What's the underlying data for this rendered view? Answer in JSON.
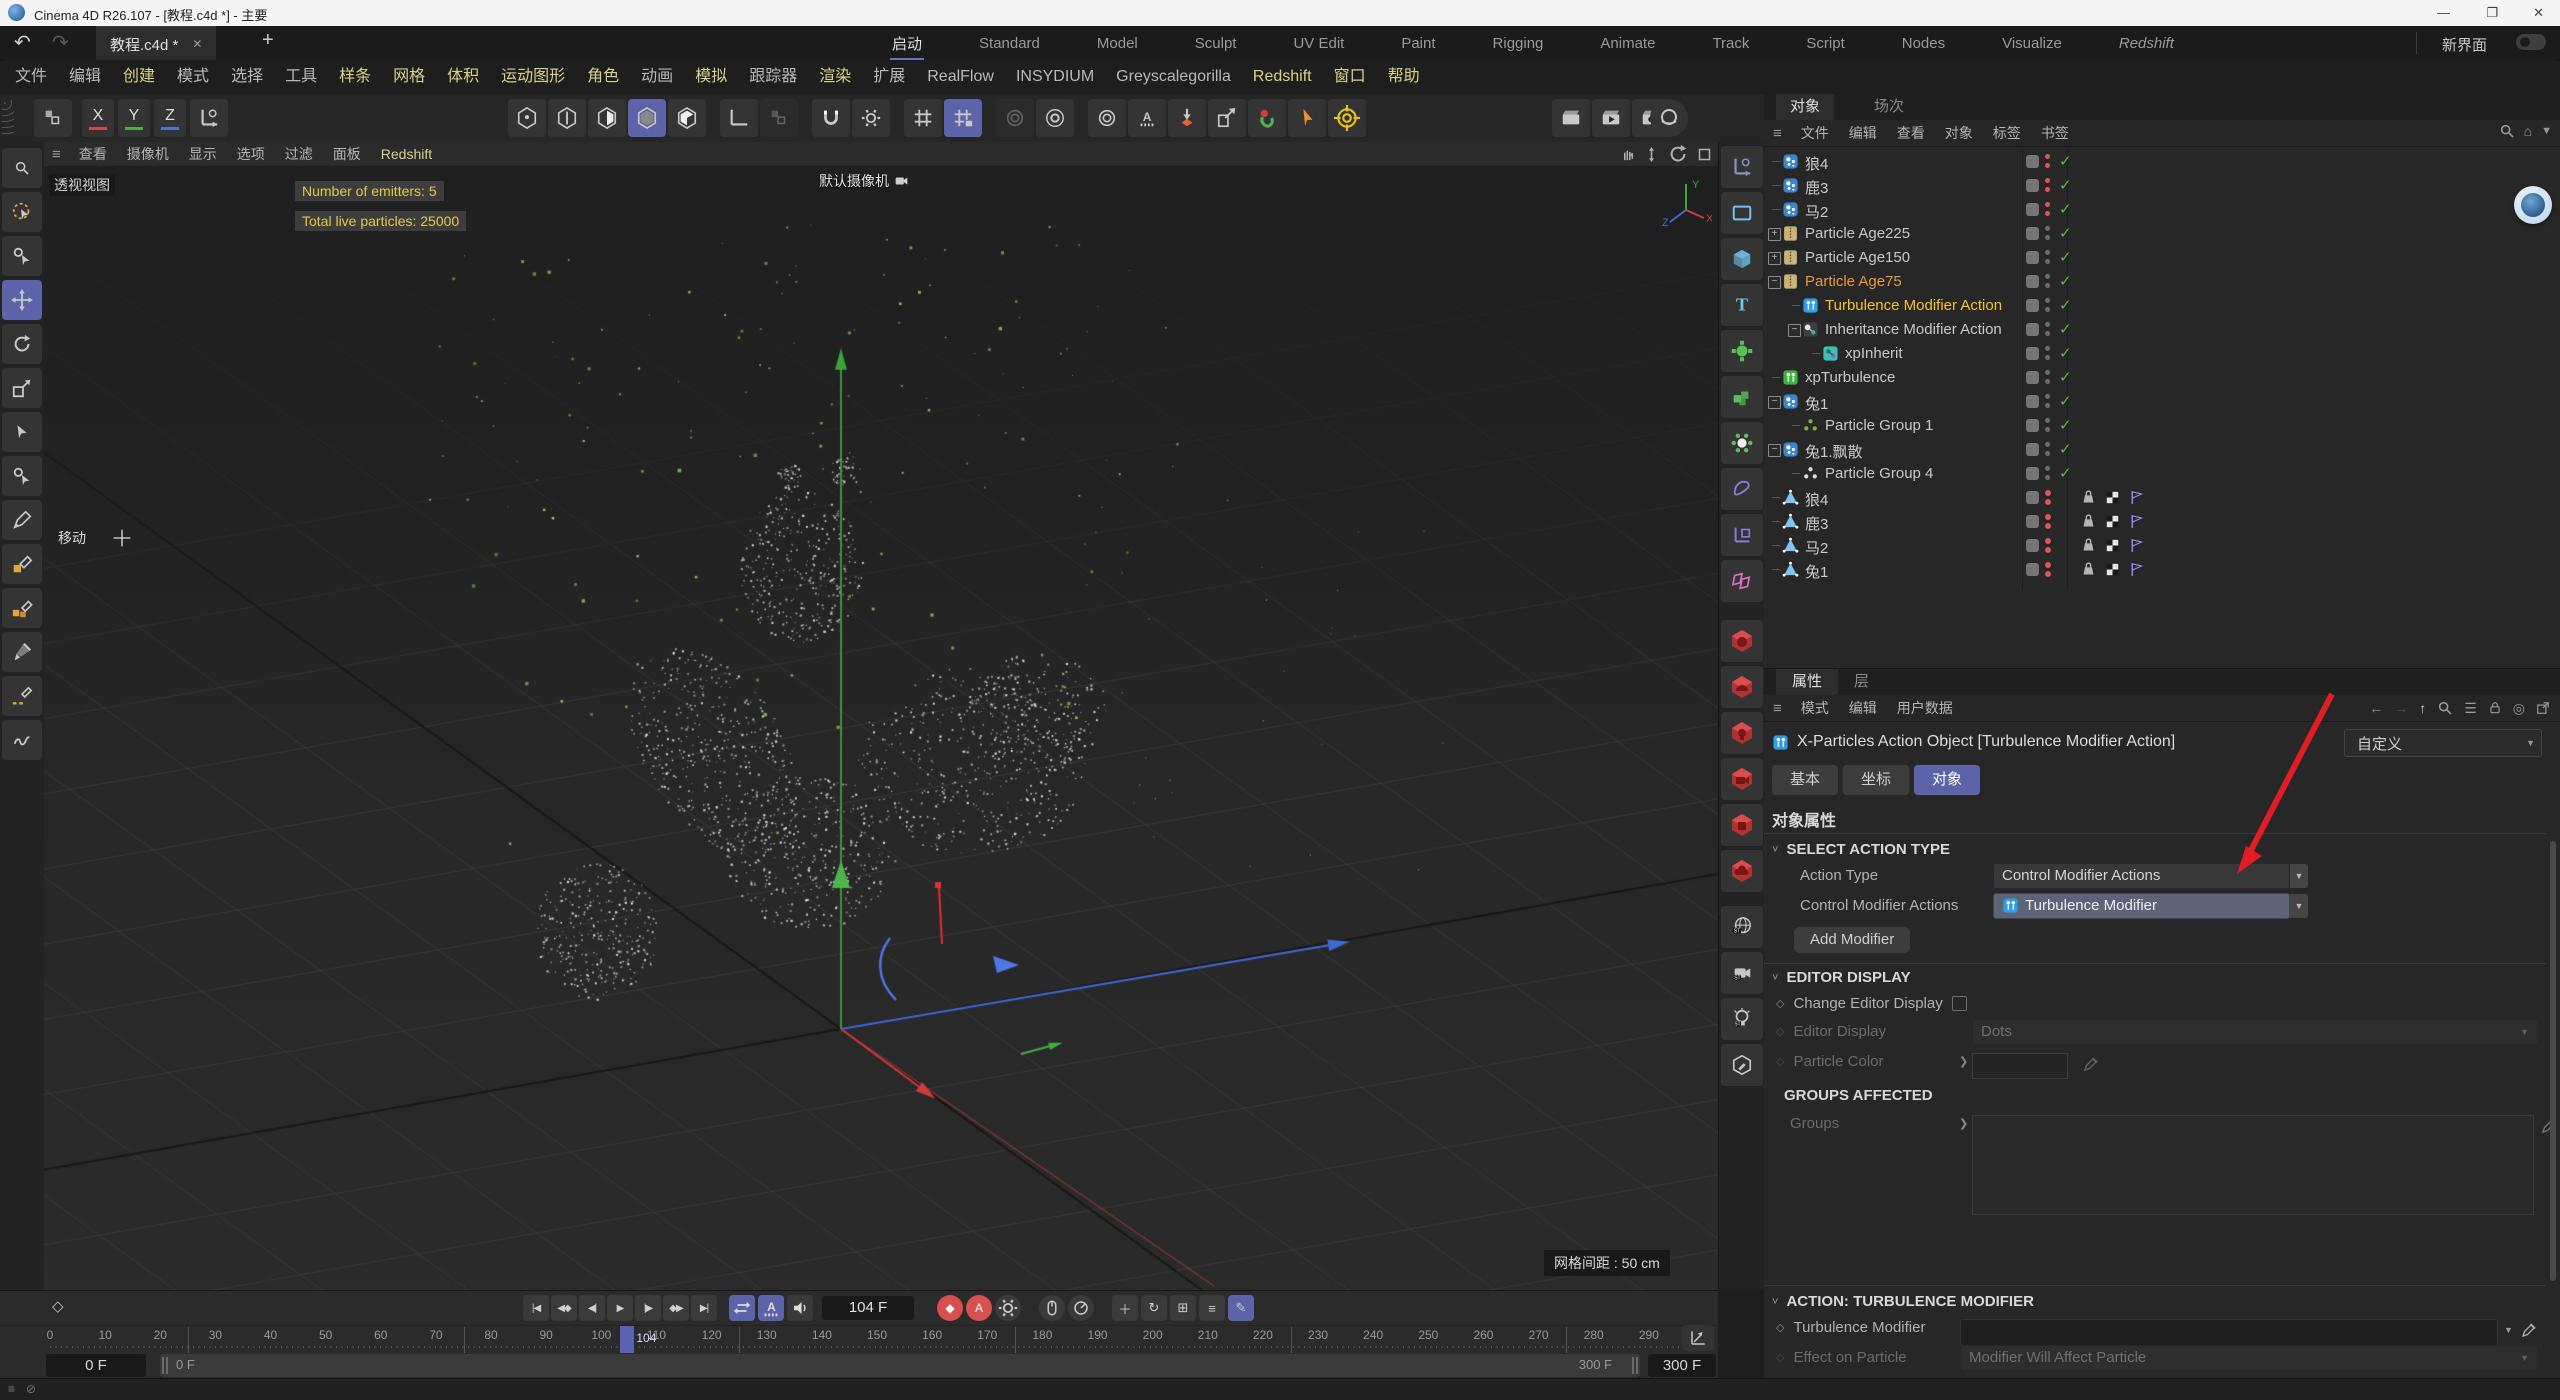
{
  "titlebar": {
    "title": "Cinema 4D R26.107 - [教程.c4d *] - 主要"
  },
  "tabbar": {
    "doc_tab": "教程.c4d *",
    "close": "✕",
    "add_tab": "+",
    "layout_tabs": [
      "启动",
      "Standard",
      "Model",
      "Sculpt",
      "UV Edit",
      "Paint",
      "Rigging",
      "Animate",
      "Track",
      "Script",
      "Nodes",
      "Visualize",
      "Redshift"
    ],
    "active_layout": "启动",
    "new_panel_label": "新界面"
  },
  "menubar": {
    "items": [
      {
        "label": "文件",
        "accent": false
      },
      {
        "label": "编辑",
        "accent": false
      },
      {
        "label": "创建",
        "accent": true
      },
      {
        "label": "模式",
        "accent": false
      },
      {
        "label": "选择",
        "accent": false
      },
      {
        "label": "工具",
        "accent": false
      },
      {
        "label": "样条",
        "accent": true
      },
      {
        "label": "网格",
        "accent": true
      },
      {
        "label": "体积",
        "accent": true
      },
      {
        "label": "运动图形",
        "accent": true
      },
      {
        "label": "角色",
        "accent": true
      },
      {
        "label": "动画",
        "accent": false
      },
      {
        "label": "模拟",
        "accent": true
      },
      {
        "label": "跟踪器",
        "accent": false
      },
      {
        "label": "渲染",
        "accent": true
      },
      {
        "label": "扩展",
        "accent": false
      },
      {
        "label": "RealFlow",
        "accent": false
      },
      {
        "label": "INSYDIUM",
        "accent": false
      },
      {
        "label": "Greyscalegorilla",
        "accent": false
      },
      {
        "label": "Redshift",
        "accent": true
      },
      {
        "label": "窗口",
        "accent": true
      },
      {
        "label": "帮助",
        "accent": true
      }
    ]
  },
  "toolbar": {
    "axis_buttons": [
      "X",
      "Y",
      "Z"
    ]
  },
  "viewport": {
    "menu": [
      "查看",
      "摄像机",
      "显示",
      "选项",
      "过滤",
      "面板",
      "Redshift"
    ],
    "view_label": "透视视图",
    "camera_label": "默认摄像机",
    "hud_lines": [
      "Number of emitters: 5",
      "Total live particles: 25000"
    ],
    "tool_hint": "移动",
    "grid_spacing_label": "网格间距 : 50 cm",
    "axis_labels": {
      "x": "X",
      "y": "Y",
      "z": "Z"
    }
  },
  "object_manager": {
    "tabs": [
      "对象",
      "场次"
    ],
    "active_tab": "对象",
    "menu": [
      "文件",
      "编辑",
      "查看",
      "对象",
      "标签",
      "书签"
    ],
    "rows": [
      {
        "t": "狼4",
        "i": "em",
        "d": 0,
        "e": "line",
        "dot": "r",
        "tail": "check"
      },
      {
        "t": "鹿3",
        "i": "em",
        "d": 0,
        "e": "line",
        "dot": "r",
        "tail": "check"
      },
      {
        "t": "马2",
        "i": "em",
        "d": 0,
        "e": "line",
        "dot": "r",
        "tail": "check"
      },
      {
        "t": "Particle Age225",
        "i": "pa",
        "d": 0,
        "e": "plus",
        "dot": "g",
        "tail": "check"
      },
      {
        "t": "Particle Age150",
        "i": "pa",
        "d": 0,
        "e": "plus",
        "dot": "g",
        "tail": "check"
      },
      {
        "t": "Particle Age75",
        "c": "orange",
        "i": "pa",
        "d": 0,
        "e": "minus",
        "dot": "g",
        "tail": "check"
      },
      {
        "t": "Turbulence Modifier Action",
        "c": "yellow",
        "i": "ta",
        "d": 1,
        "e": "line",
        "dot": "g",
        "tail": "check"
      },
      {
        "t": "Inheritance Modifier Action",
        "i": "ia",
        "d": 1,
        "e": "minus",
        "dot": "g",
        "tail": "check"
      },
      {
        "t": "xpInherit",
        "i": "xi",
        "d": 2,
        "e": "end",
        "dot": "g",
        "tail": "check"
      },
      {
        "t": "xpTurbulence",
        "i": "xt",
        "d": 0,
        "e": "line",
        "dot": "g",
        "tail": "check"
      },
      {
        "t": "兔1",
        "i": "em",
        "d": 0,
        "e": "minus",
        "dot": "g",
        "tail": "check"
      },
      {
        "t": "Particle Group 1",
        "i": "pg1",
        "d": 1,
        "e": "end",
        "dot": "g",
        "tail": "check"
      },
      {
        "t": "兔1.飘散",
        "i": "em",
        "d": 0,
        "e": "minus",
        "dot": "g",
        "tail": "check"
      },
      {
        "t": "Particle Group 4",
        "i": "pg4",
        "d": 1,
        "e": "end",
        "dot": "g",
        "tail": "check"
      },
      {
        "t": "狼4",
        "i": "po",
        "d": 0,
        "e": "line",
        "dot": "rr",
        "tail": "tags"
      },
      {
        "t": "鹿3",
        "i": "po",
        "d": 0,
        "e": "line",
        "dot": "rr",
        "tail": "tags"
      },
      {
        "t": "马2",
        "i": "po",
        "d": 0,
        "e": "line",
        "dot": "rr",
        "tail": "tags"
      },
      {
        "t": "兔1",
        "i": "po",
        "d": 0,
        "e": "line",
        "dot": "rr",
        "tail": "tags"
      }
    ]
  },
  "attributes": {
    "tabs": [
      "属性",
      "层"
    ],
    "active_tab": "属性",
    "menu": [
      "模式",
      "编辑",
      "用户数据"
    ],
    "object_title": "X-Particles Action Object [Turbulence Modifier Action]",
    "preset": "自定义",
    "tab_buttons": [
      "基本",
      "坐标",
      "对象"
    ],
    "active_button": "对象",
    "section": "对象属性",
    "sat": {
      "header": "SELECT ACTION TYPE",
      "action_type_label": "Action Type",
      "action_type_value": "Control Modifier Actions",
      "cma_label": "Control Modifier Actions",
      "cma_value": "Turbulence Modifier",
      "add_button": "Add Modifier"
    },
    "ed": {
      "header": "EDITOR DISPLAY",
      "change_label": "Change Editor Display",
      "display_label": "Editor Display",
      "display_value": "Dots",
      "color_label": "Particle Color"
    },
    "ga": {
      "header": "GROUPS AFFECTED",
      "groups_label": "Groups"
    },
    "act": {
      "header": "ACTION: TURBULENCE MODIFIER",
      "modifier_label": "Turbulence Modifier",
      "effect_label": "Effect on Particle",
      "effect_value": "Modifier Will Affect Particle"
    }
  },
  "timeline": {
    "current_frame": "104 F",
    "ruler": {
      "min": 0,
      "max": 300,
      "step": 10,
      "current": 104,
      "current_label": "104",
      "marker_frames": [
        25,
        75,
        125,
        175,
        225,
        275
      ]
    },
    "range_start": "0 F",
    "range_end": "300 F",
    "start_field": "0 F",
    "end_field": "300 F"
  },
  "colors": {
    "accent": "#5b64a8",
    "menu_accent": "#d6d28a",
    "selected_orange": "#e8993f",
    "selected_yellow": "#f5c12e",
    "check_green": "#58b558",
    "dot_red": "#e05454",
    "arrow_red": "#e21c25",
    "axis_green": "#3aa33a",
    "axis_blue": "#4169d0",
    "axis_x_red": "#d23a3a",
    "hud_yellow": "#e6c84d"
  }
}
